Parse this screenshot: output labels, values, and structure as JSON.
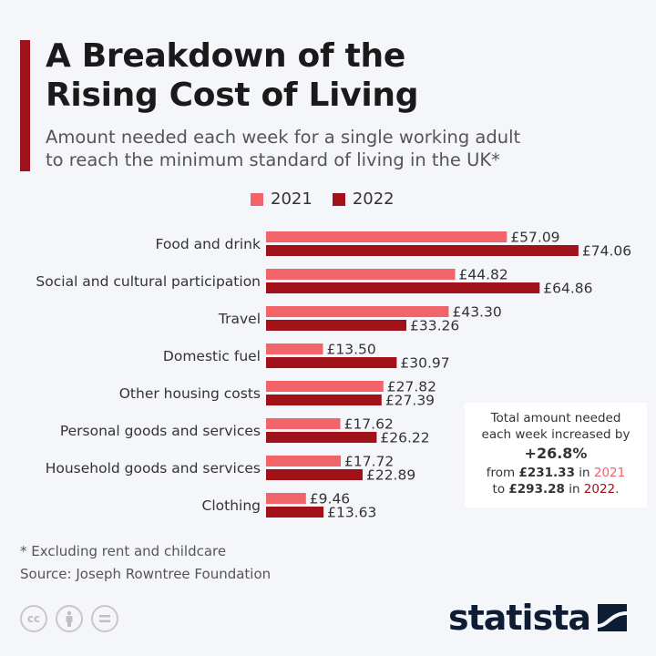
{
  "header": {
    "title_line1": "A Breakdown of the",
    "title_line2": "Rising Cost of Living",
    "subtitle_line1": "Amount needed each week for a single working adult",
    "subtitle_line2": "to reach the minimum standard of living in the UK*"
  },
  "colors": {
    "2021": "#f0646a",
    "2022": "#a0111a",
    "accent": "#a0111a"
  },
  "chart_data": {
    "type": "bar",
    "orientation": "horizontal",
    "categories": [
      "Food and drink",
      "Social and cultural participation",
      "Travel",
      "Domestic fuel",
      "Other housing costs",
      "Personal goods and services",
      "Household goods and services",
      "Clothing"
    ],
    "series": [
      {
        "name": "2021",
        "values": [
          57.09,
          44.82,
          43.3,
          13.5,
          27.82,
          17.62,
          17.72,
          9.46
        ],
        "labels": [
          "£57.09",
          "£44.82",
          "£43.30",
          "£13.50",
          "£27.82",
          "£17.62",
          "£17.72",
          "£9.46"
        ]
      },
      {
        "name": "2022",
        "values": [
          74.06,
          64.86,
          33.26,
          30.97,
          27.39,
          26.22,
          22.89,
          13.63
        ],
        "labels": [
          "£74.06",
          "£64.86",
          "£33.26",
          "£30.97",
          "£27.39",
          "£26.22",
          "£22.89",
          "£13.63"
        ]
      }
    ],
    "unit": "£",
    "legend_position": "top",
    "grid": false
  },
  "note": {
    "line1": "Total amount needed",
    "line2": "each week increased by",
    "pct": "+26.8%",
    "from": "from",
    "from_value": "£231.33",
    "in1": "in",
    "year1": "2021",
    "to": "to",
    "to_value": "£293.28",
    "in2": "in",
    "year2": "2022."
  },
  "footer": {
    "footnote": "* Excluding rent and childcare",
    "source": "Source: Joseph Rowntree Foundation",
    "cc_label": "cc",
    "brand": "statista"
  }
}
